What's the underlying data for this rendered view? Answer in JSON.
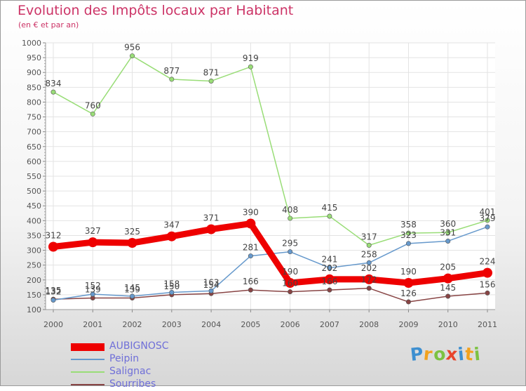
{
  "chart_data": {
    "type": "line",
    "title": "Evolution des Impôts locaux par Habitant",
    "subtitle": "(en € et par an)",
    "xlabel": "",
    "ylabel": "",
    "categories": [
      "2000",
      "2001",
      "2002",
      "2003",
      "2004",
      "2005",
      "2006",
      "2007",
      "2008",
      "2009",
      "2010",
      "2011"
    ],
    "ylim": [
      100,
      1000
    ],
    "yticks": [
      100,
      150,
      200,
      250,
      300,
      350,
      400,
      450,
      500,
      550,
      600,
      650,
      700,
      750,
      800,
      850,
      900,
      950,
      1000
    ],
    "series": [
      {
        "name": "AUBIGNOSC",
        "color": "#ee0000",
        "values": [
          312,
          327,
          325,
          347,
          371,
          390,
          190,
          202,
          202,
          190,
          205,
          224
        ]
      },
      {
        "name": "Peipin",
        "color": "#6699cc",
        "values": [
          132,
          152,
          145,
          158,
          163,
          281,
          295,
          241,
          258,
          323,
          331,
          379
        ]
      },
      {
        "name": "Salignac",
        "color": "#99dd77",
        "values": [
          834,
          760,
          956,
          877,
          871,
          919,
          408,
          415,
          317,
          358,
          360,
          401
        ]
      },
      {
        "name": "Sourribes",
        "color": "#884444",
        "values": [
          135,
          139,
          139,
          150,
          154,
          166,
          160,
          166,
          172,
          126,
          145,
          156
        ]
      }
    ]
  },
  "logo": {
    "letters": [
      "P",
      "r",
      "o",
      "x",
      "i",
      "t",
      "i"
    ],
    "colors": [
      "#3d8fd0",
      "#f2a21e",
      "#7cc242",
      "#e8452c",
      "#3d8fd0",
      "#f2a21e",
      "#7cc242"
    ]
  }
}
